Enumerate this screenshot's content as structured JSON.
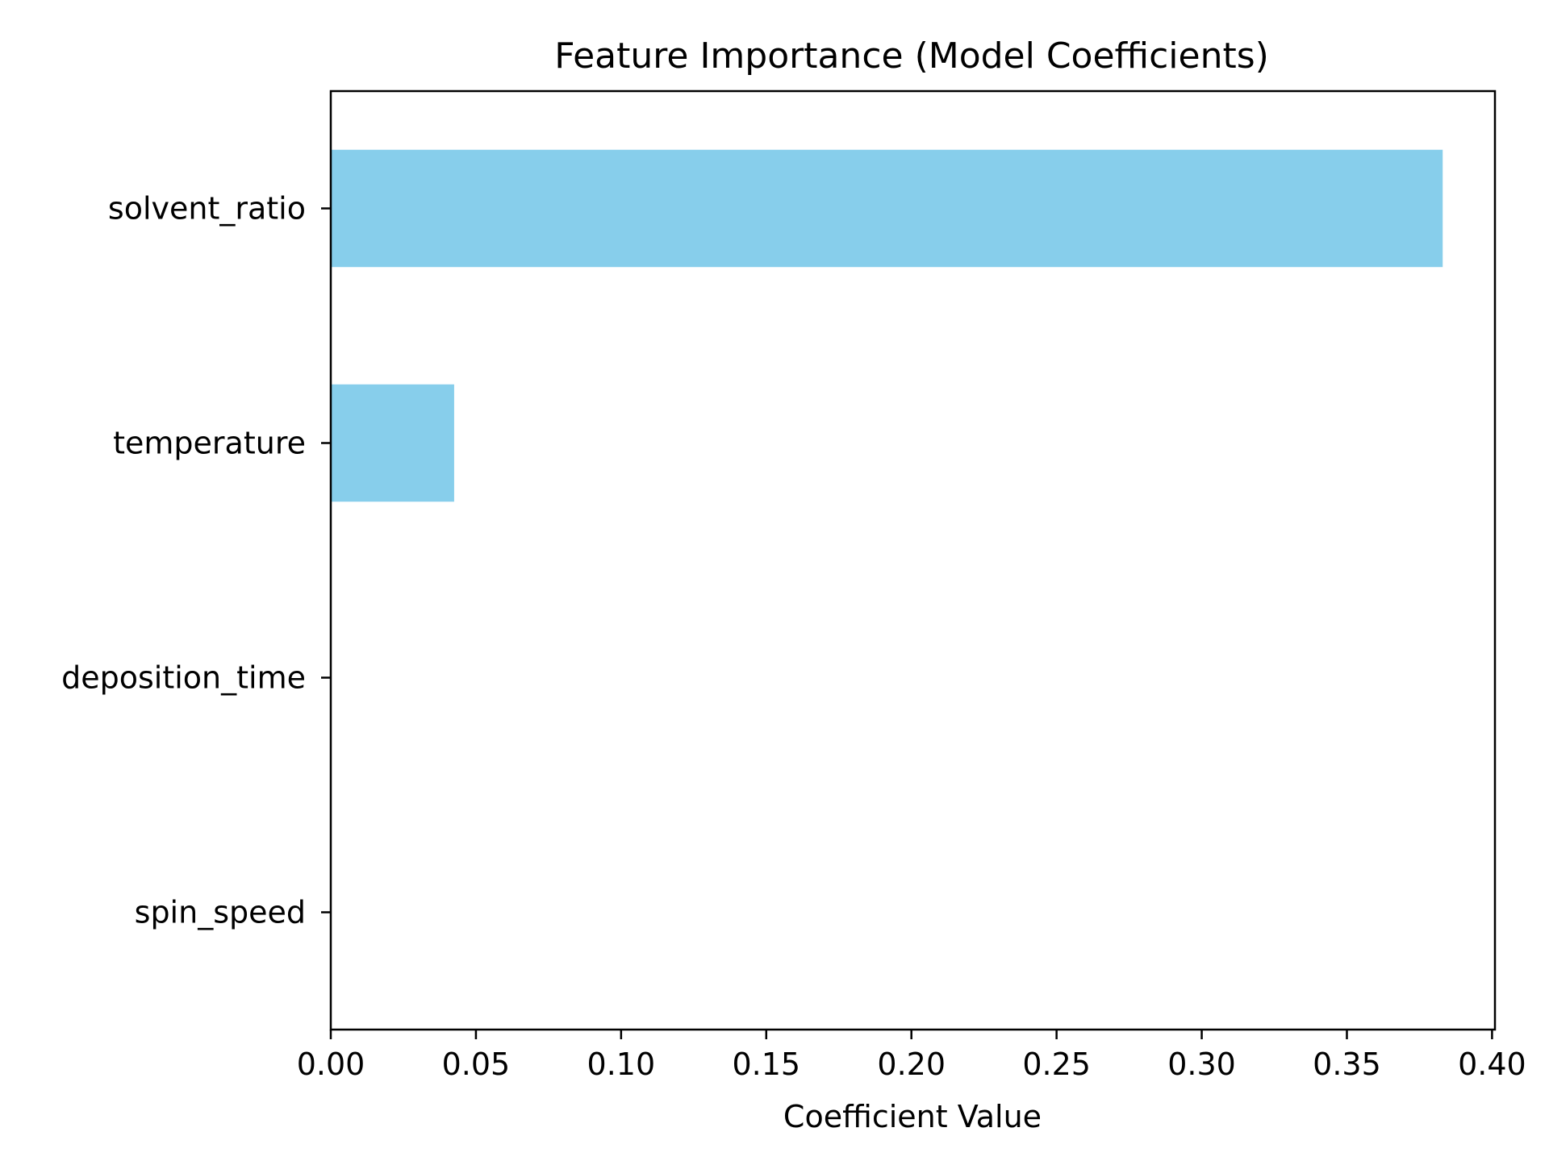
{
  "chart_data": {
    "type": "bar",
    "orientation": "horizontal",
    "title": "Feature Importance (Model Coefficients)",
    "xlabel": "Coefficient Value",
    "ylabel": "",
    "categories": [
      "solvent_ratio",
      "temperature",
      "deposition_time",
      "spin_speed"
    ],
    "values": [
      0.383,
      0.0425,
      0.0,
      0.0
    ],
    "xlim": [
      0.0,
      0.401
    ],
    "xticks": [
      "0.00",
      "0.05",
      "0.10",
      "0.15",
      "0.20",
      "0.25",
      "0.30",
      "0.35",
      "0.40"
    ],
    "bar_color": "#87ceeb",
    "grid": false,
    "legend": "none"
  }
}
